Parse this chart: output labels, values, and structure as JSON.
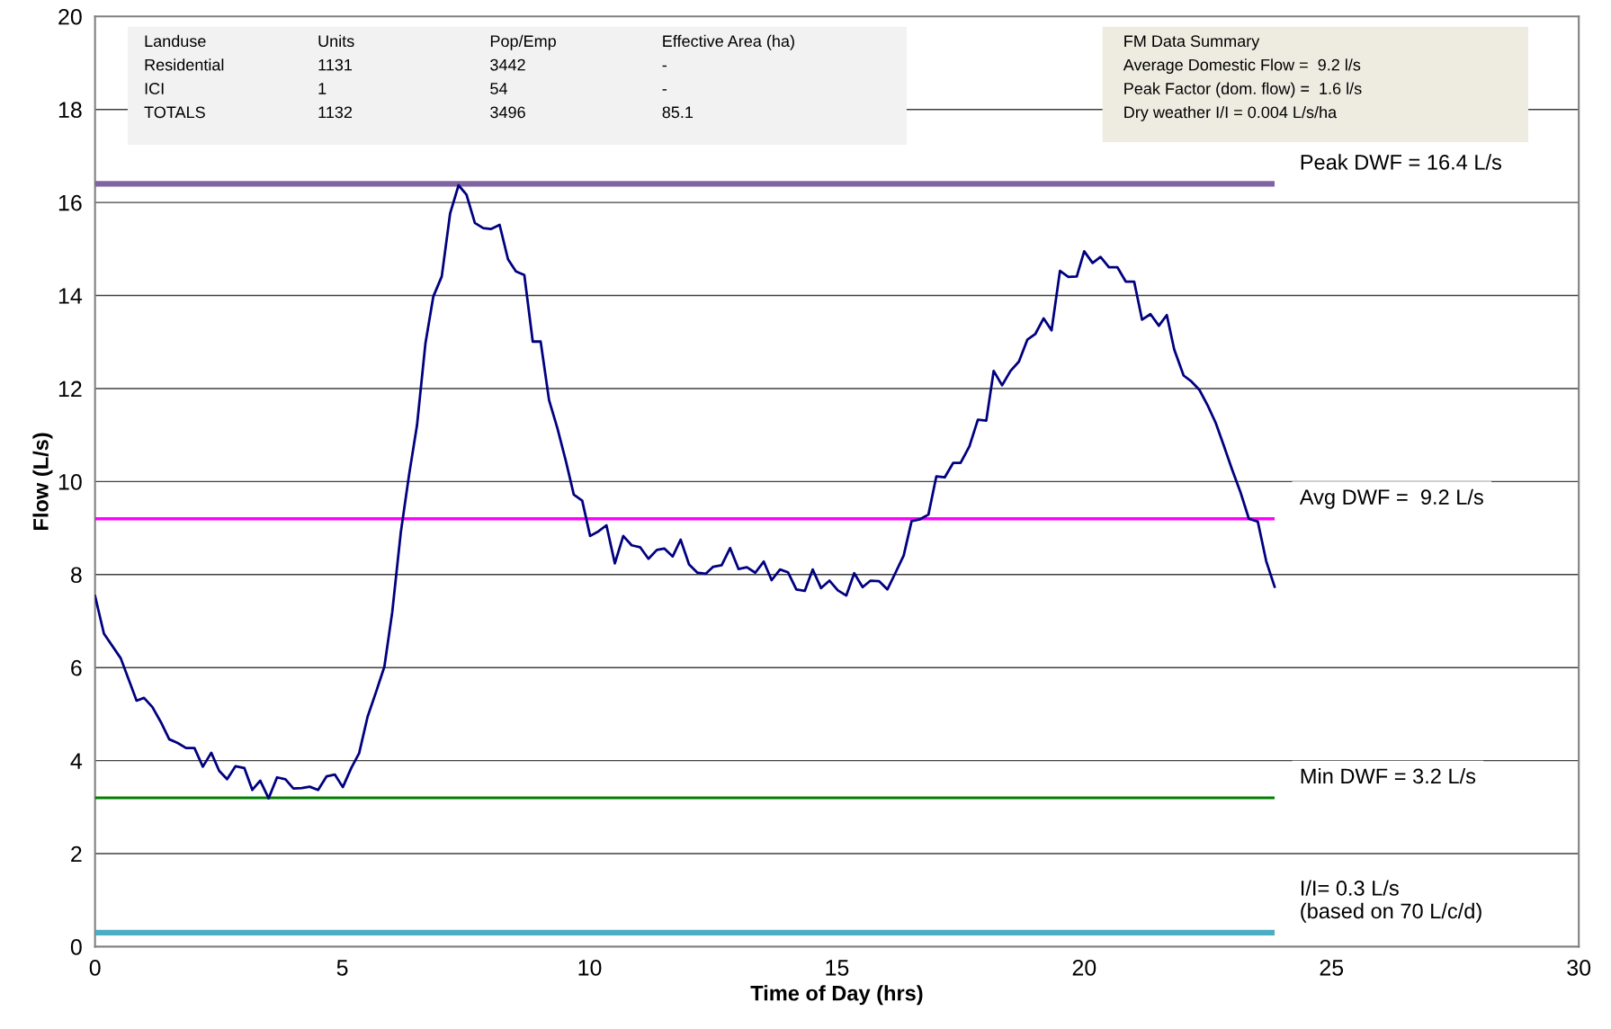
{
  "chart_data": {
    "type": "line",
    "xlabel": "Time of Day (hrs)",
    "ylabel": "Flow (L/s)",
    "xlim": [
      0,
      30
    ],
    "xticks": [
      0,
      5,
      10,
      15,
      20,
      25,
      30
    ],
    "ylim": [
      0,
      20
    ],
    "yticks": [
      0,
      2,
      4,
      6,
      8,
      10,
      12,
      14,
      16,
      18,
      20
    ],
    "grid": "y",
    "legend": false,
    "marker": "none",
    "line_style": "solid",
    "series": [
      {
        "color": "#000080",
        "x": [
          0,
          0.18,
          0.52,
          0.84,
          0.99,
          1.16,
          1.33,
          1.5,
          1.67,
          1.84,
          2.01,
          2.18,
          2.35,
          2.51,
          2.67,
          2.84,
          3.02,
          3.18,
          3.34,
          3.51,
          3.68,
          3.85,
          4.01,
          4.18,
          4.34,
          4.51,
          4.68,
          4.85,
          5.01,
          5.18,
          5.34,
          5.51,
          5.68,
          5.85,
          6.01,
          6.18,
          6.35,
          6.51,
          6.68,
          6.84,
          7.01,
          7.18,
          7.35,
          7.51,
          7.68,
          7.85,
          8.01,
          8.18,
          8.35,
          8.51,
          8.68,
          8.85,
          9.01,
          9.18,
          9.35,
          9.52,
          9.68,
          9.85,
          10.01,
          10.18,
          10.34,
          10.51,
          10.68,
          10.85,
          11.02,
          11.19,
          11.36,
          11.51,
          11.68,
          11.84,
          12.01,
          12.18,
          12.35,
          12.5,
          12.67,
          12.84,
          13.01,
          13.18,
          13.35,
          13.52,
          13.68,
          13.85,
          14.01,
          14.18,
          14.35,
          14.51,
          14.68,
          14.85,
          15.02,
          15.19,
          15.35,
          15.52,
          15.68,
          15.85,
          16.02,
          16.18,
          16.35,
          16.51,
          16.68,
          16.85,
          17.01,
          17.18,
          17.35,
          17.5,
          17.68,
          17.85,
          18.02,
          18.17,
          18.34,
          18.51,
          18.68,
          18.85,
          19.01,
          19.18,
          19.34,
          19.51,
          19.68,
          19.85,
          20.0,
          20.17,
          20.33,
          20.5,
          20.67,
          20.84,
          21.01,
          21.17,
          21.34,
          21.51,
          21.67,
          21.82,
          22.01,
          22.17,
          22.33,
          22.5,
          22.66,
          22.82,
          22.99,
          23.16,
          23.33,
          23.51,
          23.68,
          23.85
        ],
        "values": [
          7.54,
          6.73,
          6.2,
          5.29,
          5.35,
          5.15,
          4.83,
          4.46,
          4.38,
          4.27,
          4.27,
          3.87,
          4.17,
          3.78,
          3.6,
          3.88,
          3.84,
          3.37,
          3.57,
          3.19,
          3.64,
          3.6,
          3.4,
          3.41,
          3.44,
          3.37,
          3.66,
          3.7,
          3.43,
          3.84,
          4.16,
          4.94,
          5.47,
          6.02,
          7.2,
          8.89,
          10.15,
          11.21,
          12.97,
          13.98,
          14.41,
          15.77,
          16.37,
          16.17,
          15.56,
          15.45,
          15.43,
          15.52,
          14.78,
          14.52,
          14.44,
          13.01,
          13.01,
          11.75,
          11.14,
          10.44,
          9.72,
          9.59,
          8.83,
          8.93,
          9.06,
          8.24,
          8.83,
          8.63,
          8.59,
          8.34,
          8.53,
          8.56,
          8.39,
          8.75,
          8.22,
          8.04,
          8.02,
          8.17,
          8.2,
          8.57,
          8.12,
          8.16,
          8.04,
          8.28,
          7.88,
          8.11,
          8.05,
          7.68,
          7.65,
          8.11,
          7.71,
          7.87,
          7.66,
          7.55,
          8.03,
          7.73,
          7.87,
          7.86,
          7.68,
          8.03,
          8.41,
          9.15,
          9.19,
          9.29,
          10.11,
          10.09,
          10.4,
          10.4,
          10.76,
          11.33,
          11.31,
          12.38,
          12.07,
          12.38,
          12.58,
          13.05,
          13.17,
          13.51,
          13.25,
          14.53,
          14.4,
          14.41,
          14.95,
          14.7,
          14.83,
          14.61,
          14.61,
          14.3,
          14.3,
          13.48,
          13.6,
          13.35,
          13.58,
          12.84,
          12.28,
          12.15,
          11.97,
          11.63,
          11.26,
          10.78,
          10.26,
          9.77,
          9.2,
          9.14,
          8.29,
          7.74
        ]
      }
    ],
    "ref_lines": [
      {
        "axis": "y",
        "value": 16.4,
        "label": "Peak DWF = 16.4 L/s",
        "color": "#8064a2"
      },
      {
        "axis": "y",
        "value": 9.2,
        "label": "Avg DWF =  9.2 L/s",
        "color": "#ff00ff"
      },
      {
        "axis": "y",
        "value": 3.2,
        "label": "Min DWF = 3.2 L/s",
        "color": "#008000"
      },
      {
        "axis": "y",
        "value": 0.3,
        "label": "I/I= 0.3 L/s\n(based on 70 L/c/d)",
        "color": "#4bacc6"
      }
    ],
    "annotations": [
      "Landuse",
      "Units",
      "Pop/Emp",
      "Effective Area (ha)",
      "Residential",
      "1131",
      "3442",
      "-",
      "ICI",
      "1",
      "54",
      "-",
      "TOTALS",
      "1132",
      "3496",
      "85.1",
      "FM Data Summary",
      "Average Domestic Flow =  9.2 l/s",
      "Peak Factor (dom. flow) =  1.6 l/s",
      "Dry weather I/I = 0.004 L/s/ha"
    ]
  }
}
